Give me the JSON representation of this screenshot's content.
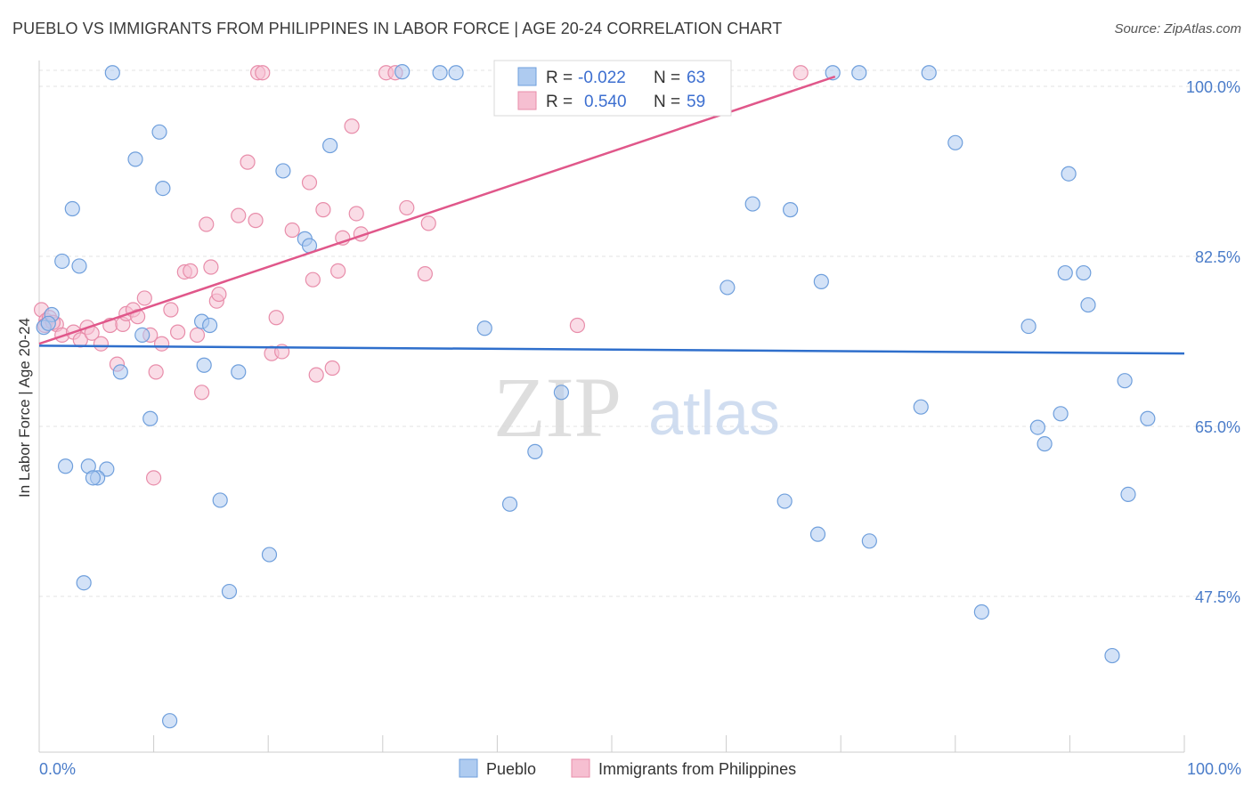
{
  "title": "PUEBLO VS IMMIGRANTS FROM PHILIPPINES IN LABOR FORCE | AGE 20-24 CORRELATION CHART",
  "source": "Source: ZipAtlas.com",
  "watermark": {
    "zip": "ZIP",
    "atlas": "atlas"
  },
  "colors": {
    "blue_fill": "#aecbf0",
    "blue_stroke": "#6f9fdc",
    "blue_line": "#2f6fcc",
    "pink_fill": "#f6bfd1",
    "pink_stroke": "#e88daa",
    "pink_line": "#e0578a",
    "grid": "#e3e3e3",
    "axis_label": "#4a7cc9"
  },
  "legend": {
    "rows": [
      {
        "r_label": "R =",
        "r_value": "-0.022",
        "n_label": "N =",
        "n_value": "63"
      },
      {
        "r_label": "R =",
        "r_value": "0.540",
        "n_label": "N =",
        "n_value": "59"
      }
    ]
  },
  "chart_data": {
    "type": "scatter",
    "title": "PUEBLO VS IMMIGRANTS FROM PHILIPPINES IN LABOR FORCE | AGE 20-24 CORRELATION CHART",
    "xlabel": "",
    "ylabel": "In Labor Force | Age 20-24",
    "xlim": [
      0,
      100
    ],
    "ylim": [
      34,
      102
    ],
    "x_tick_labels": [
      "0.0%",
      "100.0%"
    ],
    "y_ticks": [
      {
        "value": 47.5,
        "label": "47.5%"
      },
      {
        "value": 65.0,
        "label": "65.0%"
      },
      {
        "value": 82.5,
        "label": "82.5%"
      },
      {
        "value": 100.0,
        "label": "100.0%"
      }
    ],
    "series": [
      {
        "name": "Pueblo",
        "r": -0.022,
        "n": 63,
        "trend": {
          "x": [
            0,
            100
          ],
          "y": [
            73.3,
            72.5
          ]
        },
        "points": [
          [
            0.4,
            75.2
          ],
          [
            1.1,
            76.5
          ],
          [
            0.8,
            75.6
          ],
          [
            6.4,
            101.4
          ],
          [
            10.5,
            95.3
          ],
          [
            8.4,
            92.5
          ],
          [
            2.9,
            87.4
          ],
          [
            10.8,
            89.5
          ],
          [
            2.0,
            82.0
          ],
          [
            3.5,
            81.5
          ],
          [
            14.2,
            75.8
          ],
          [
            14.9,
            75.4
          ],
          [
            9.0,
            74.4
          ],
          [
            7.1,
            70.6
          ],
          [
            14.4,
            71.3
          ],
          [
            17.4,
            70.6
          ],
          [
            9.7,
            65.8
          ],
          [
            2.3,
            60.9
          ],
          [
            4.3,
            60.9
          ],
          [
            5.9,
            60.6
          ],
          [
            5.1,
            59.7
          ],
          [
            4.7,
            59.7
          ],
          [
            15.8,
            57.4
          ],
          [
            3.9,
            48.9
          ],
          [
            16.6,
            48.0
          ],
          [
            20.1,
            51.8
          ],
          [
            11.4,
            34.7
          ],
          [
            21.3,
            91.3
          ],
          [
            25.4,
            93.9
          ],
          [
            23.2,
            84.3
          ],
          [
            23.6,
            83.6
          ],
          [
            31.7,
            101.5
          ],
          [
            35.0,
            101.4
          ],
          [
            36.4,
            101.4
          ],
          [
            38.9,
            75.1
          ],
          [
            45.6,
            68.5
          ],
          [
            43.3,
            62.4
          ],
          [
            41.1,
            57.0
          ],
          [
            62.3,
            87.9
          ],
          [
            65.6,
            87.3
          ],
          [
            60.1,
            79.3
          ],
          [
            68.3,
            79.9
          ],
          [
            69.3,
            101.4
          ],
          [
            71.6,
            101.4
          ],
          [
            77.7,
            101.4
          ],
          [
            80.0,
            94.2
          ],
          [
            65.1,
            57.3
          ],
          [
            68.0,
            53.9
          ],
          [
            72.5,
            53.2
          ],
          [
            77.0,
            67.0
          ],
          [
            82.3,
            45.9
          ],
          [
            86.4,
            75.3
          ],
          [
            87.2,
            64.9
          ],
          [
            87.8,
            63.2
          ],
          [
            89.2,
            66.3
          ],
          [
            89.6,
            80.8
          ],
          [
            89.9,
            91.0
          ],
          [
            91.2,
            80.8
          ],
          [
            91.6,
            77.5
          ],
          [
            94.8,
            69.7
          ],
          [
            95.1,
            58.0
          ],
          [
            93.7,
            41.4
          ],
          [
            96.8,
            65.8
          ]
        ]
      },
      {
        "name": "Immigrants from Philippines",
        "r": 0.54,
        "n": 59,
        "trend": {
          "x": [
            0,
            69.5
          ],
          "y": [
            73.5,
            101.0
          ]
        },
        "points": [
          [
            0.2,
            77.0
          ],
          [
            0.6,
            75.9
          ],
          [
            0.9,
            76.2
          ],
          [
            1.5,
            75.5
          ],
          [
            2.0,
            74.4
          ],
          [
            3.0,
            74.7
          ],
          [
            3.6,
            73.9
          ],
          [
            4.2,
            75.2
          ],
          [
            4.6,
            74.6
          ],
          [
            5.4,
            73.5
          ],
          [
            6.2,
            75.4
          ],
          [
            6.8,
            71.4
          ],
          [
            7.3,
            75.5
          ],
          [
            7.6,
            76.6
          ],
          [
            8.2,
            77.0
          ],
          [
            8.6,
            76.3
          ],
          [
            9.2,
            78.2
          ],
          [
            9.7,
            74.4
          ],
          [
            10.2,
            70.6
          ],
          [
            10.7,
            73.5
          ],
          [
            11.5,
            77.0
          ],
          [
            12.1,
            74.7
          ],
          [
            12.7,
            80.9
          ],
          [
            13.2,
            81.0
          ],
          [
            13.8,
            74.4
          ],
          [
            14.2,
            68.5
          ],
          [
            14.6,
            85.8
          ],
          [
            15.0,
            81.4
          ],
          [
            15.5,
            77.9
          ],
          [
            15.7,
            78.6
          ],
          [
            17.4,
            86.7
          ],
          [
            18.2,
            92.2
          ],
          [
            18.9,
            86.2
          ],
          [
            19.1,
            101.4
          ],
          [
            19.5,
            101.4
          ],
          [
            20.3,
            72.5
          ],
          [
            20.7,
            76.2
          ],
          [
            21.2,
            72.7
          ],
          [
            22.1,
            85.2
          ],
          [
            23.6,
            90.1
          ],
          [
            23.9,
            80.1
          ],
          [
            24.2,
            70.3
          ],
          [
            24.8,
            87.3
          ],
          [
            25.6,
            71.0
          ],
          [
            26.1,
            81.0
          ],
          [
            26.5,
            84.4
          ],
          [
            27.3,
            95.9
          ],
          [
            27.7,
            86.9
          ],
          [
            28.1,
            84.8
          ],
          [
            30.3,
            101.4
          ],
          [
            31.1,
            101.4
          ],
          [
            32.1,
            87.5
          ],
          [
            33.7,
            80.7
          ],
          [
            34.0,
            85.9
          ],
          [
            0.5,
            75.4
          ],
          [
            1.2,
            75.7
          ],
          [
            10.0,
            59.7
          ],
          [
            47.0,
            75.4
          ],
          [
            66.5,
            101.4
          ]
        ]
      }
    ],
    "legend_position": "top-center"
  }
}
